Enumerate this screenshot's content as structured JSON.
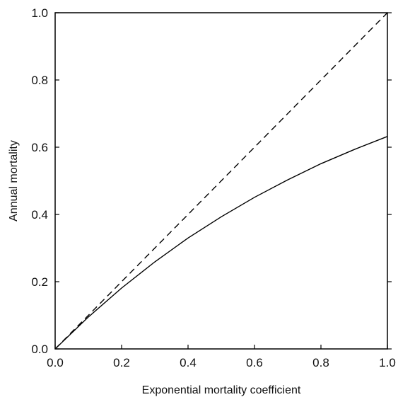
{
  "chart_data": {
    "type": "line",
    "title": "",
    "xlabel": "Exponential mortality coefficient",
    "ylabel": "Annual mortality",
    "xlim": [
      0.0,
      1.0
    ],
    "ylim": [
      0.0,
      1.0
    ],
    "xticks": [
      "0.0",
      "0.2",
      "0.4",
      "0.6",
      "0.8",
      "1.0"
    ],
    "yticks": [
      "0.0",
      "0.2",
      "0.4",
      "0.6",
      "0.8",
      "1.0"
    ],
    "grid": false,
    "legend": "none",
    "series": [
      {
        "style": "solid",
        "color": "#000000",
        "x": [
          0.0,
          0.1,
          0.2,
          0.3,
          0.4,
          0.5,
          0.6,
          0.7,
          0.8,
          0.9,
          1.0
        ],
        "y": [
          0.0,
          0.095,
          0.181,
          0.259,
          0.33,
          0.393,
          0.451,
          0.503,
          0.551,
          0.593,
          0.632
        ]
      },
      {
        "style": "dashed",
        "color": "#000000",
        "x": [
          0.0,
          1.0
        ],
        "y": [
          0.0,
          1.0
        ]
      }
    ]
  }
}
